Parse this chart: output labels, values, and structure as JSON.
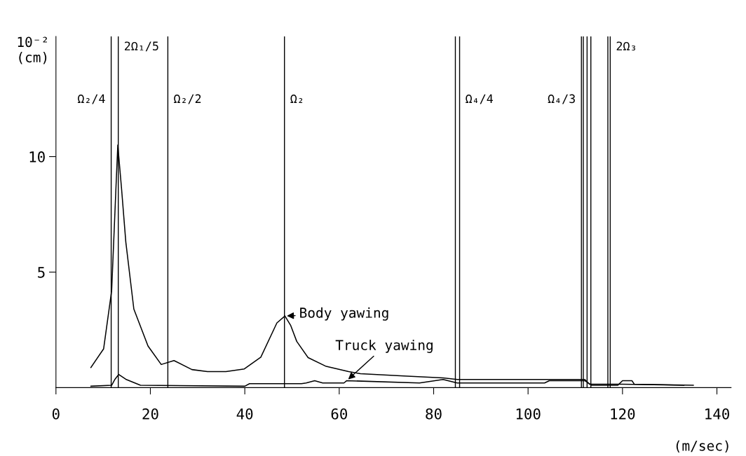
{
  "chart_data": {
    "type": "line",
    "xlabel": "(m/sec)",
    "ylabel": "10⁻²\n(cm)",
    "xlim": [
      0,
      143
    ],
    "xticks": [
      0,
      20,
      40,
      60,
      80,
      100,
      120,
      140
    ],
    "ylim": [
      0,
      15.2
    ],
    "yticks": [
      5,
      10
    ],
    "grid": false,
    "marker": "none",
    "line_style": "solid",
    "series": [
      {
        "name": "Body yawing",
        "color": "#000000",
        "x": [
          7.4,
          10.1,
          11.8,
          12.7,
          13.1,
          13.9,
          14.8,
          16.5,
          19.5,
          22.3,
          25.0,
          28.8,
          32.1,
          36.0,
          39.9,
          43.4,
          46.8,
          48.5,
          49.7,
          51.0,
          53.4,
          57.1,
          62.0,
          64.5,
          73.7,
          82.0,
          85.0,
          112.0,
          113.0,
          120.0,
          133.0
        ],
        "values": [
          0.87,
          1.68,
          4.2,
          8.6,
          10.5,
          8.6,
          6.3,
          3.4,
          1.8,
          1.0,
          1.17,
          0.78,
          0.69,
          0.69,
          0.81,
          1.32,
          2.8,
          3.1,
          2.7,
          2.0,
          1.3,
          0.93,
          0.69,
          0.6,
          0.5,
          0.42,
          0.35,
          0.35,
          0.15,
          0.15,
          0.1
        ]
      },
      {
        "name": "Truck yawing",
        "color": "#000000",
        "x": [
          7.4,
          11.8,
          12.5,
          13.3,
          14.8,
          17.9,
          40.0,
          41.0,
          52.0,
          53.0,
          54.8,
          56.5,
          61.0,
          61.6,
          77.0,
          82.0,
          85.0,
          103.5,
          104.5,
          112.0,
          113.5,
          119.0,
          120.0,
          122.0,
          122.5,
          135.0
        ],
        "values": [
          0.06,
          0.1,
          0.36,
          0.57,
          0.36,
          0.1,
          0.06,
          0.17,
          0.17,
          0.2,
          0.3,
          0.2,
          0.2,
          0.3,
          0.2,
          0.35,
          0.2,
          0.2,
          0.3,
          0.3,
          0.1,
          0.1,
          0.3,
          0.3,
          0.15,
          0.1
        ]
      }
    ],
    "ref_lines": [
      {
        "axis": "x",
        "value": 11.7,
        "label": "Ω₂/4",
        "color": "#000000"
      },
      {
        "axis": "x",
        "value": 13.2,
        "label": "2Ω₁/5",
        "color": "#000000"
      },
      {
        "axis": "x",
        "value": 23.7,
        "label": "Ω₂/2",
        "color": "#000000"
      },
      {
        "axis": "x",
        "value": 48.4,
        "label": "Ω₂",
        "color": "#000000"
      },
      {
        "axis": "x",
        "value": 84.6,
        "label": null,
        "color": "#000000"
      },
      {
        "axis": "x",
        "value": 85.5,
        "label": "Ω₄/4",
        "color": "#000000"
      },
      {
        "axis": "x",
        "value": 111.3,
        "label": "Ω₄/3",
        "color": "#000000"
      },
      {
        "axis": "x",
        "value": 111.7,
        "label": null,
        "color": "#000000"
      },
      {
        "axis": "x",
        "value": 112.5,
        "label": null,
        "color": "#000000"
      },
      {
        "axis": "x",
        "value": 113.3,
        "label": null,
        "color": "#000000"
      },
      {
        "axis": "x",
        "value": 116.9,
        "label": null,
        "color": "#000000"
      },
      {
        "axis": "x",
        "value": 117.4,
        "label": "2Ω₃",
        "color": "#000000"
      }
    ]
  }
}
